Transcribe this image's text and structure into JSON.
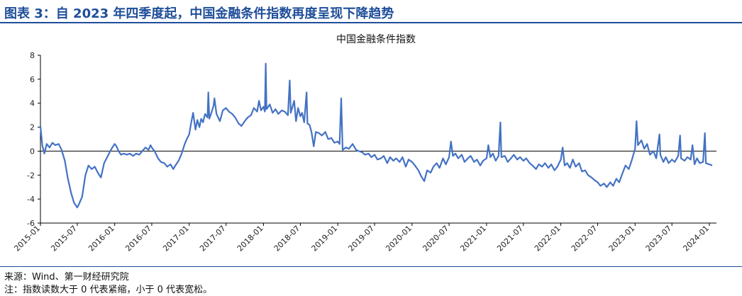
{
  "figure": {
    "label": "图表 3：自 2023 年四季度起，中国金融条件指数再度呈现下降趋势",
    "source": "来源：Wind、第一财经研究院",
    "note": "注：指数读数大于 0 代表紧缩，小于 0 代表宽松。"
  },
  "colors": {
    "line": "#4472c4",
    "header": "#1f4e9a",
    "axis": "#000000"
  },
  "chart_data": {
    "type": "line",
    "title": "中国金融条件指数",
    "xlabel": "",
    "ylabel": "",
    "ylim": [
      -6,
      8
    ],
    "yticks": [
      -6,
      -4,
      -2,
      0,
      2,
      4,
      6,
      8
    ],
    "xticks": [
      "2015-01",
      "2015-07",
      "2016-01",
      "2016-07",
      "2017-01",
      "2017-07",
      "2018-01",
      "2018-07",
      "2019-01",
      "2019-07",
      "2020-01",
      "2020-07",
      "2021-01",
      "2021-07",
      "2022-01",
      "2022-07",
      "2023-01",
      "2023-07",
      "2024-01"
    ],
    "grid": false,
    "legend": "none",
    "series": [
      {
        "name": "",
        "points": [
          [
            "2015-01-01",
            2.1
          ],
          [
            "2015-01-10",
            0.5
          ],
          [
            "2015-01-20",
            -0.2
          ],
          [
            "2015-02-01",
            0.6
          ],
          [
            "2015-02-15",
            0.3
          ],
          [
            "2015-03-01",
            0.7
          ],
          [
            "2015-03-15",
            0.5
          ],
          [
            "2015-04-01",
            0.6
          ],
          [
            "2015-04-15",
            0.1
          ],
          [
            "2015-05-01",
            -0.8
          ],
          [
            "2015-05-15",
            -2.2
          ],
          [
            "2015-06-01",
            -3.5
          ],
          [
            "2015-06-15",
            -4.3
          ],
          [
            "2015-07-01",
            -4.7
          ],
          [
            "2015-07-10",
            -4.4
          ],
          [
            "2015-07-25",
            -3.8
          ],
          [
            "2015-08-10",
            -2.0
          ],
          [
            "2015-08-25",
            -1.2
          ],
          [
            "2015-09-10",
            -1.5
          ],
          [
            "2015-09-25",
            -1.3
          ],
          [
            "2015-10-10",
            -1.8
          ],
          [
            "2015-10-25",
            -2.2
          ],
          [
            "2015-11-10",
            -1.0
          ],
          [
            "2015-11-25",
            -0.5
          ],
          [
            "2015-12-10",
            0.0
          ],
          [
            "2015-12-20",
            0.3
          ],
          [
            "2016-01-01",
            0.6
          ],
          [
            "2016-01-10",
            0.4
          ],
          [
            "2016-01-20",
            0.0
          ],
          [
            "2016-02-01",
            -0.3
          ],
          [
            "2016-02-15",
            -0.2
          ],
          [
            "2016-03-01",
            -0.3
          ],
          [
            "2016-03-15",
            -0.2
          ],
          [
            "2016-04-01",
            -0.4
          ],
          [
            "2016-04-15",
            -0.2
          ],
          [
            "2016-05-01",
            -0.3
          ],
          [
            "2016-05-15",
            0.0
          ],
          [
            "2016-06-01",
            0.3
          ],
          [
            "2016-06-15",
            0.1
          ],
          [
            "2016-06-25",
            0.5
          ],
          [
            "2016-07-01",
            0.3
          ],
          [
            "2016-07-15",
            0.0
          ],
          [
            "2016-08-01",
            -0.6
          ],
          [
            "2016-08-15",
            -0.9
          ],
          [
            "2016-09-01",
            -1.0
          ],
          [
            "2016-09-15",
            -1.3
          ],
          [
            "2016-10-01",
            -1.1
          ],
          [
            "2016-10-15",
            -1.5
          ],
          [
            "2016-10-25",
            -1.2
          ],
          [
            "2016-11-10",
            -0.8
          ],
          [
            "2016-11-25",
            -0.2
          ],
          [
            "2016-12-10",
            0.6
          ],
          [
            "2016-12-20",
            1.0
          ],
          [
            "2017-01-01",
            1.4
          ],
          [
            "2017-01-10",
            2.3
          ],
          [
            "2017-01-20",
            3.2
          ],
          [
            "2017-02-01",
            1.8
          ],
          [
            "2017-02-10",
            2.6
          ],
          [
            "2017-02-20",
            2.0
          ],
          [
            "2017-03-01",
            2.7
          ],
          [
            "2017-03-10",
            2.4
          ],
          [
            "2017-03-20",
            3.1
          ],
          [
            "2017-04-01",
            2.8
          ],
          [
            "2017-04-05",
            4.9
          ],
          [
            "2017-04-10",
            2.7
          ],
          [
            "2017-04-20",
            3.2
          ],
          [
            "2017-05-01",
            3.8
          ],
          [
            "2017-05-05",
            4.4
          ],
          [
            "2017-05-15",
            3.1
          ],
          [
            "2017-06-01",
            2.5
          ],
          [
            "2017-06-15",
            3.4
          ],
          [
            "2017-07-01",
            3.6
          ],
          [
            "2017-07-15",
            3.3
          ],
          [
            "2017-08-01",
            3.1
          ],
          [
            "2017-08-15",
            2.8
          ],
          [
            "2017-09-01",
            2.3
          ],
          [
            "2017-09-15",
            2.1
          ],
          [
            "2017-10-01",
            2.5
          ],
          [
            "2017-10-15",
            2.8
          ],
          [
            "2017-11-01",
            3.0
          ],
          [
            "2017-11-15",
            3.6
          ],
          [
            "2017-12-01",
            3.3
          ],
          [
            "2017-12-10",
            4.2
          ],
          [
            "2017-12-20",
            3.4
          ],
          [
            "2018-01-01",
            3.7
          ],
          [
            "2018-01-08",
            3.3
          ],
          [
            "2018-01-12",
            7.3
          ],
          [
            "2018-01-16",
            3.5
          ],
          [
            "2018-02-01",
            3.9
          ],
          [
            "2018-02-15",
            3.2
          ],
          [
            "2018-03-01",
            3.5
          ],
          [
            "2018-03-15",
            3.1
          ],
          [
            "2018-04-01",
            3.4
          ],
          [
            "2018-04-15",
            3.3
          ],
          [
            "2018-05-01",
            3.0
          ],
          [
            "2018-05-10",
            5.9
          ],
          [
            "2018-05-15",
            3.2
          ],
          [
            "2018-06-01",
            4.2
          ],
          [
            "2018-06-10",
            2.5
          ],
          [
            "2018-06-20",
            3.6
          ],
          [
            "2018-07-01",
            2.9
          ],
          [
            "2018-07-10",
            3.2
          ],
          [
            "2018-07-20",
            2.4
          ],
          [
            "2018-08-01",
            4.9
          ],
          [
            "2018-08-05",
            2.3
          ],
          [
            "2018-08-15",
            2.2
          ],
          [
            "2018-08-25",
            1.6
          ],
          [
            "2018-09-05",
            0.4
          ],
          [
            "2018-09-15",
            1.6
          ],
          [
            "2018-10-01",
            1.5
          ],
          [
            "2018-10-15",
            1.3
          ],
          [
            "2018-11-01",
            1.6
          ],
          [
            "2018-11-15",
            1.0
          ],
          [
            "2018-12-01",
            1.1
          ],
          [
            "2018-12-15",
            0.7
          ],
          [
            "2019-01-01",
            0.8
          ],
          [
            "2019-01-10",
            0.6
          ],
          [
            "2019-01-18",
            4.4
          ],
          [
            "2019-01-25",
            0.1
          ],
          [
            "2019-02-10",
            0.3
          ],
          [
            "2019-02-25",
            0.2
          ],
          [
            "2019-03-15",
            0.6
          ],
          [
            "2019-04-01",
            0.1
          ],
          [
            "2019-04-15",
            0.0
          ],
          [
            "2019-05-01",
            -0.1
          ],
          [
            "2019-05-15",
            -0.3
          ],
          [
            "2019-06-01",
            -0.2
          ],
          [
            "2019-06-15",
            -0.5
          ],
          [
            "2019-07-01",
            -0.3
          ],
          [
            "2019-07-15",
            -0.7
          ],
          [
            "2019-08-01",
            -0.6
          ],
          [
            "2019-08-15",
            -0.4
          ],
          [
            "2019-09-01",
            -1.0
          ],
          [
            "2019-09-15",
            -0.5
          ],
          [
            "2019-10-01",
            -0.8
          ],
          [
            "2019-10-15",
            -0.6
          ],
          [
            "2019-11-01",
            -0.9
          ],
          [
            "2019-11-15",
            -0.5
          ],
          [
            "2019-12-01",
            -1.3
          ],
          [
            "2019-12-15",
            -0.7
          ],
          [
            "2020-01-01",
            -0.9
          ],
          [
            "2020-01-15",
            -1.2
          ],
          [
            "2020-02-01",
            -1.6
          ],
          [
            "2020-02-15",
            -2.1
          ],
          [
            "2020-03-01",
            -2.5
          ],
          [
            "2020-03-15",
            -1.6
          ],
          [
            "2020-04-01",
            -1.8
          ],
          [
            "2020-04-15",
            -1.3
          ],
          [
            "2020-05-01",
            -1.0
          ],
          [
            "2020-05-15",
            -1.4
          ],
          [
            "2020-06-01",
            -0.6
          ],
          [
            "2020-06-15",
            -1.1
          ],
          [
            "2020-07-01",
            -0.5
          ],
          [
            "2020-07-10",
            0.8
          ],
          [
            "2020-07-20",
            -0.4
          ],
          [
            "2020-08-01",
            -0.2
          ],
          [
            "2020-08-15",
            -0.6
          ],
          [
            "2020-09-01",
            -0.3
          ],
          [
            "2020-09-15",
            -0.9
          ],
          [
            "2020-10-01",
            -0.6
          ],
          [
            "2020-10-15",
            -0.4
          ],
          [
            "2020-11-01",
            -0.9
          ],
          [
            "2020-11-15",
            -0.7
          ],
          [
            "2020-12-01",
            -1.2
          ],
          [
            "2020-12-15",
            -0.8
          ],
          [
            "2021-01-01",
            -0.6
          ],
          [
            "2021-01-10",
            0.5
          ],
          [
            "2021-01-20",
            -0.5
          ],
          [
            "2021-02-01",
            -0.2
          ],
          [
            "2021-02-15",
            -0.8
          ],
          [
            "2021-03-01",
            -0.4
          ],
          [
            "2021-03-10",
            2.4
          ],
          [
            "2021-03-15",
            -0.5
          ],
          [
            "2021-04-01",
            -0.4
          ],
          [
            "2021-04-15",
            -0.9
          ],
          [
            "2021-05-01",
            -0.6
          ],
          [
            "2021-05-15",
            -0.3
          ],
          [
            "2021-06-01",
            -0.7
          ],
          [
            "2021-06-15",
            -0.5
          ],
          [
            "2021-07-01",
            -0.8
          ],
          [
            "2021-07-15",
            -0.6
          ],
          [
            "2021-08-01",
            -1.0
          ],
          [
            "2021-08-15",
            -1.2
          ],
          [
            "2021-09-01",
            -1.5
          ],
          [
            "2021-09-15",
            -1.1
          ],
          [
            "2021-10-01",
            -1.3
          ],
          [
            "2021-10-15",
            -1.0
          ],
          [
            "2021-11-01",
            -1.4
          ],
          [
            "2021-11-15",
            -1.1
          ],
          [
            "2021-12-01",
            -1.6
          ],
          [
            "2021-12-15",
            -1.3
          ],
          [
            "2022-01-01",
            -0.7
          ],
          [
            "2022-01-10",
            0.3
          ],
          [
            "2022-01-20",
            -1.2
          ],
          [
            "2022-02-01",
            -1.0
          ],
          [
            "2022-02-15",
            -1.4
          ],
          [
            "2022-03-01",
            -0.7
          ],
          [
            "2022-03-15",
            -1.3
          ],
          [
            "2022-04-01",
            -1.0
          ],
          [
            "2022-04-15",
            -1.7
          ],
          [
            "2022-05-01",
            -1.6
          ],
          [
            "2022-05-15",
            -2.0
          ],
          [
            "2022-06-01",
            -2.2
          ],
          [
            "2022-06-15",
            -2.4
          ],
          [
            "2022-07-01",
            -2.6
          ],
          [
            "2022-07-15",
            -2.9
          ],
          [
            "2022-08-01",
            -2.7
          ],
          [
            "2022-08-15",
            -3.0
          ],
          [
            "2022-09-01",
            -2.6
          ],
          [
            "2022-09-15",
            -2.9
          ],
          [
            "2022-10-01",
            -2.3
          ],
          [
            "2022-10-15",
            -2.6
          ],
          [
            "2022-11-01",
            -1.8
          ],
          [
            "2022-11-15",
            -1.2
          ],
          [
            "2022-12-01",
            -1.5
          ],
          [
            "2022-12-15",
            -0.8
          ],
          [
            "2023-01-01",
            0.2
          ],
          [
            "2023-01-08",
            2.5
          ],
          [
            "2023-01-15",
            0.5
          ],
          [
            "2023-02-01",
            0.9
          ],
          [
            "2023-02-15",
            0.2
          ],
          [
            "2023-03-01",
            0.6
          ],
          [
            "2023-03-15",
            -0.3
          ],
          [
            "2023-04-01",
            0.0
          ],
          [
            "2023-04-15",
            -0.6
          ],
          [
            "2023-05-01",
            1.4
          ],
          [
            "2023-05-05",
            -0.3
          ],
          [
            "2023-05-20",
            -0.9
          ],
          [
            "2023-06-01",
            -0.5
          ],
          [
            "2023-06-15",
            -1.0
          ],
          [
            "2023-07-01",
            -0.7
          ],
          [
            "2023-07-15",
            -0.9
          ],
          [
            "2023-08-01",
            -0.4
          ],
          [
            "2023-08-10",
            1.3
          ],
          [
            "2023-08-15",
            -0.6
          ],
          [
            "2023-09-01",
            -0.8
          ],
          [
            "2023-09-15",
            -0.5
          ],
          [
            "2023-10-01",
            -0.7
          ],
          [
            "2023-10-10",
            0.5
          ],
          [
            "2023-10-20",
            -1.1
          ],
          [
            "2023-11-01",
            -0.6
          ],
          [
            "2023-11-15",
            -1.0
          ],
          [
            "2023-12-01",
            -0.9
          ],
          [
            "2023-12-10",
            1.5
          ],
          [
            "2023-12-15",
            -1.0
          ],
          [
            "2024-01-01",
            -1.1
          ],
          [
            "2024-01-15",
            -1.2
          ]
        ]
      }
    ]
  }
}
